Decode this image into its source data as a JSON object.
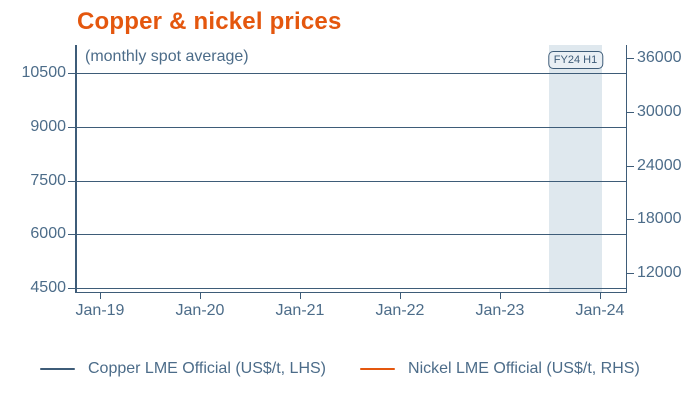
{
  "chart_data": {
    "type": "line",
    "title": "Copper & nickel prices",
    "subtitle": "(monthly spot average)",
    "x_tick_labels": [
      "Jan-19",
      "Jan-20",
      "Jan-21",
      "Jan-22",
      "Jan-23",
      "Jan-24"
    ],
    "left_axis": {
      "tick_values": [
        10500,
        9000,
        7500,
        6000,
        4500
      ],
      "side": "left"
    },
    "right_axis": {
      "tick_values": [
        36000,
        30000,
        24000,
        18000,
        12000
      ],
      "side": "right"
    },
    "series": [
      {
        "name": "Copper LME Official (US$/t, LHS)",
        "axis": "LHS",
        "color": "#3E5C78",
        "values": []
      },
      {
        "name": "Nickel LME Official (US$/t, RHS)",
        "axis": "RHS",
        "color": "#E4570E",
        "values": []
      }
    ],
    "highlight_band": {
      "label": "FY24 H1",
      "from": "Jul-23",
      "to": "Jan-24"
    },
    "legend_position": "bottom",
    "grid": "horizontal-only",
    "colors": {
      "title": "#E4570E",
      "axis_line": "#3E5C78",
      "tick_text": "#4C6C89",
      "band_fill": "#DFE8EE",
      "badge_fill": "#E9EFF4"
    }
  }
}
